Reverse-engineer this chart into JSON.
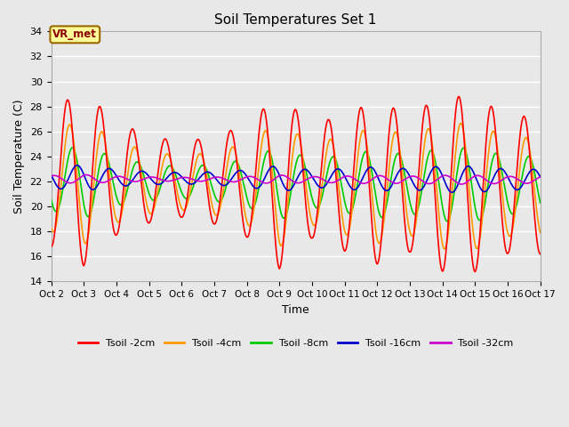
{
  "title": "Soil Temperatures Set 1",
  "xlabel": "Time",
  "ylabel": "Soil Temperature (C)",
  "ylim": [
    14,
    34
  ],
  "yticks": [
    14,
    16,
    18,
    20,
    22,
    24,
    26,
    28,
    30,
    32,
    34
  ],
  "facecolor": "#e8e8e8",
  "grid_color": "#ffffff",
  "annotation_text": "VR_met",
  "annotation_bg": "#ffff99",
  "annotation_border": "#996600",
  "colors": {
    "Tsoil -2cm": "#ff0000",
    "Tsoil -4cm": "#ff9900",
    "Tsoil -8cm": "#00cc00",
    "Tsoil -16cm": "#0000cc",
    "Tsoil -32cm": "#cc00cc"
  },
  "x_ticks_labels": [
    "Oct 2",
    "Oct 3",
    "Oct 4",
    "Oct 5",
    "Oct 6",
    "Oct 7",
    "Oct 8",
    "Oct 9",
    "Oct 10",
    "Oct 11",
    "Oct 12",
    "Oct 13",
    "Oct 14",
    "Oct 15",
    "Oct 16",
    "Oct 17"
  ],
  "x_ticks_pos": [
    2,
    3,
    4,
    5,
    6,
    7,
    8,
    9,
    10,
    11,
    12,
    13,
    14,
    15,
    16,
    17
  ],
  "figsize": [
    6.4,
    4.8
  ],
  "dpi": 100
}
